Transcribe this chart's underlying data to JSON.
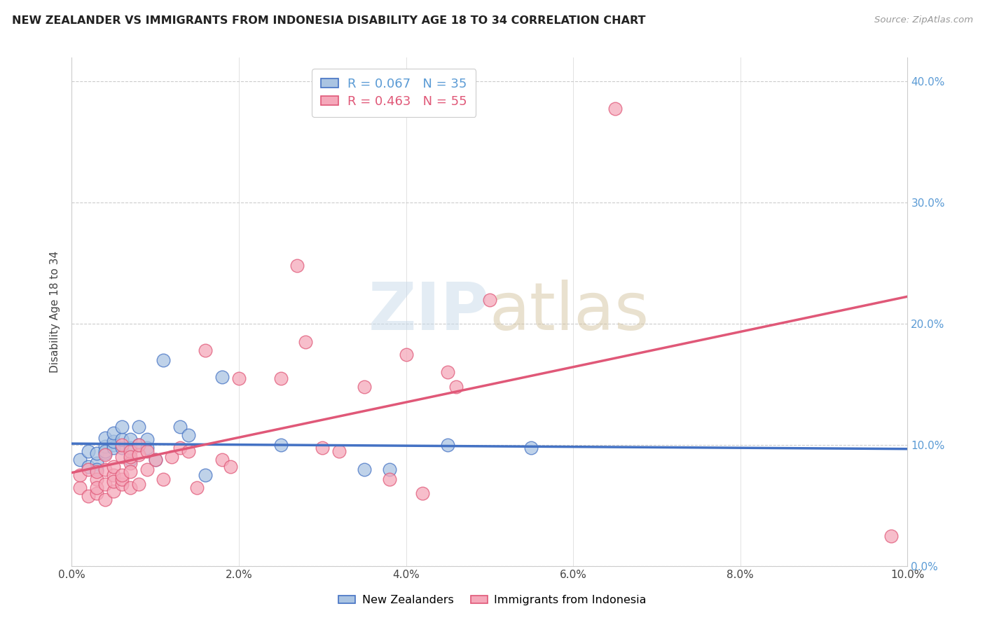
{
  "title": "NEW ZEALANDER VS IMMIGRANTS FROM INDONESIA DISABILITY AGE 18 TO 34 CORRELATION CHART",
  "source": "Source: ZipAtlas.com",
  "ylabel": "Disability Age 18 to 34",
  "xlim": [
    0,
    0.1
  ],
  "ylim": [
    0,
    0.42
  ],
  "xticks": [
    0.0,
    0.02,
    0.04,
    0.06,
    0.08,
    0.1
  ],
  "yticks": [
    0.0,
    0.1,
    0.2,
    0.3,
    0.4
  ],
  "nz_R": 0.067,
  "nz_N": 35,
  "id_R": 0.463,
  "id_N": 55,
  "nz_color": "#aac4e2",
  "id_color": "#f5a8ba",
  "nz_line_color": "#4472c4",
  "id_line_color": "#e05878",
  "watermark_zip": "ZIP",
  "watermark_atlas": "atlas",
  "nz_x": [
    0.001,
    0.002,
    0.002,
    0.003,
    0.003,
    0.003,
    0.004,
    0.004,
    0.004,
    0.004,
    0.005,
    0.005,
    0.005,
    0.005,
    0.006,
    0.006,
    0.006,
    0.007,
    0.007,
    0.007,
    0.008,
    0.008,
    0.009,
    0.009,
    0.01,
    0.011,
    0.013,
    0.014,
    0.016,
    0.018,
    0.025,
    0.035,
    0.038,
    0.045,
    0.055
  ],
  "nz_y": [
    0.088,
    0.082,
    0.095,
    0.085,
    0.08,
    0.093,
    0.093,
    0.099,
    0.106,
    0.095,
    0.1,
    0.098,
    0.103,
    0.11,
    0.098,
    0.105,
    0.115,
    0.088,
    0.098,
    0.105,
    0.1,
    0.115,
    0.098,
    0.105,
    0.088,
    0.17,
    0.115,
    0.108,
    0.075,
    0.156,
    0.1,
    0.08,
    0.08,
    0.1,
    0.098
  ],
  "id_x": [
    0.001,
    0.001,
    0.002,
    0.002,
    0.003,
    0.003,
    0.003,
    0.003,
    0.004,
    0.004,
    0.004,
    0.004,
    0.005,
    0.005,
    0.005,
    0.005,
    0.006,
    0.006,
    0.006,
    0.006,
    0.006,
    0.007,
    0.007,
    0.007,
    0.007,
    0.007,
    0.008,
    0.008,
    0.008,
    0.009,
    0.009,
    0.01,
    0.011,
    0.012,
    0.013,
    0.014,
    0.015,
    0.016,
    0.018,
    0.019,
    0.02,
    0.025,
    0.027,
    0.028,
    0.03,
    0.032,
    0.035,
    0.038,
    0.04,
    0.042,
    0.045,
    0.046,
    0.05,
    0.065,
    0.098
  ],
  "id_y": [
    0.065,
    0.075,
    0.058,
    0.08,
    0.06,
    0.072,
    0.065,
    0.078,
    0.068,
    0.08,
    0.055,
    0.092,
    0.062,
    0.075,
    0.082,
    0.07,
    0.068,
    0.072,
    0.09,
    0.1,
    0.075,
    0.065,
    0.085,
    0.078,
    0.095,
    0.09,
    0.068,
    0.092,
    0.1,
    0.08,
    0.095,
    0.088,
    0.072,
    0.09,
    0.098,
    0.095,
    0.065,
    0.178,
    0.088,
    0.082,
    0.155,
    0.155,
    0.248,
    0.185,
    0.098,
    0.095,
    0.148,
    0.072,
    0.175,
    0.06,
    0.16,
    0.148,
    0.22,
    0.378,
    0.025
  ]
}
